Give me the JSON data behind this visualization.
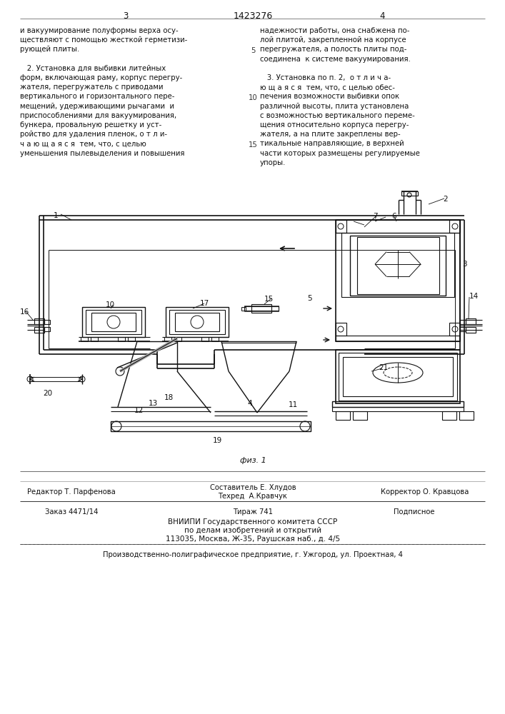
{
  "page_width": 7.07,
  "page_height": 10.0,
  "bg_color": "#ffffff",
  "text_color": "#1a1a1a",
  "line_color": "#111111",
  "title_number": "1423276",
  "page_left": "3",
  "page_right": "4",
  "figure_label": "физ. 1",
  "footer_editor": "Редактор Т. Парфенова",
  "footer_composer": "Составитель Е. Хлудов",
  "footer_techred": "Техред  А.Кравчук",
  "footer_corrector": "Корректор О. Кравцова",
  "footer_order": "Заказ 4471/14",
  "footer_tirazh": "Тираж 741",
  "footer_podpisnoe": "Подписное",
  "footer_vniiipi": "ВНИИПИ Государственного комитета СССР",
  "footer_po_delam": "по делам изобретений и открытий",
  "footer_address": "113035, Москва, Ж-35, Раушская наб., д. 4/5",
  "footer_tipografia": "Производственно-полиграфическое предприятие, г. Ужгород, ул. Проектная, 4"
}
